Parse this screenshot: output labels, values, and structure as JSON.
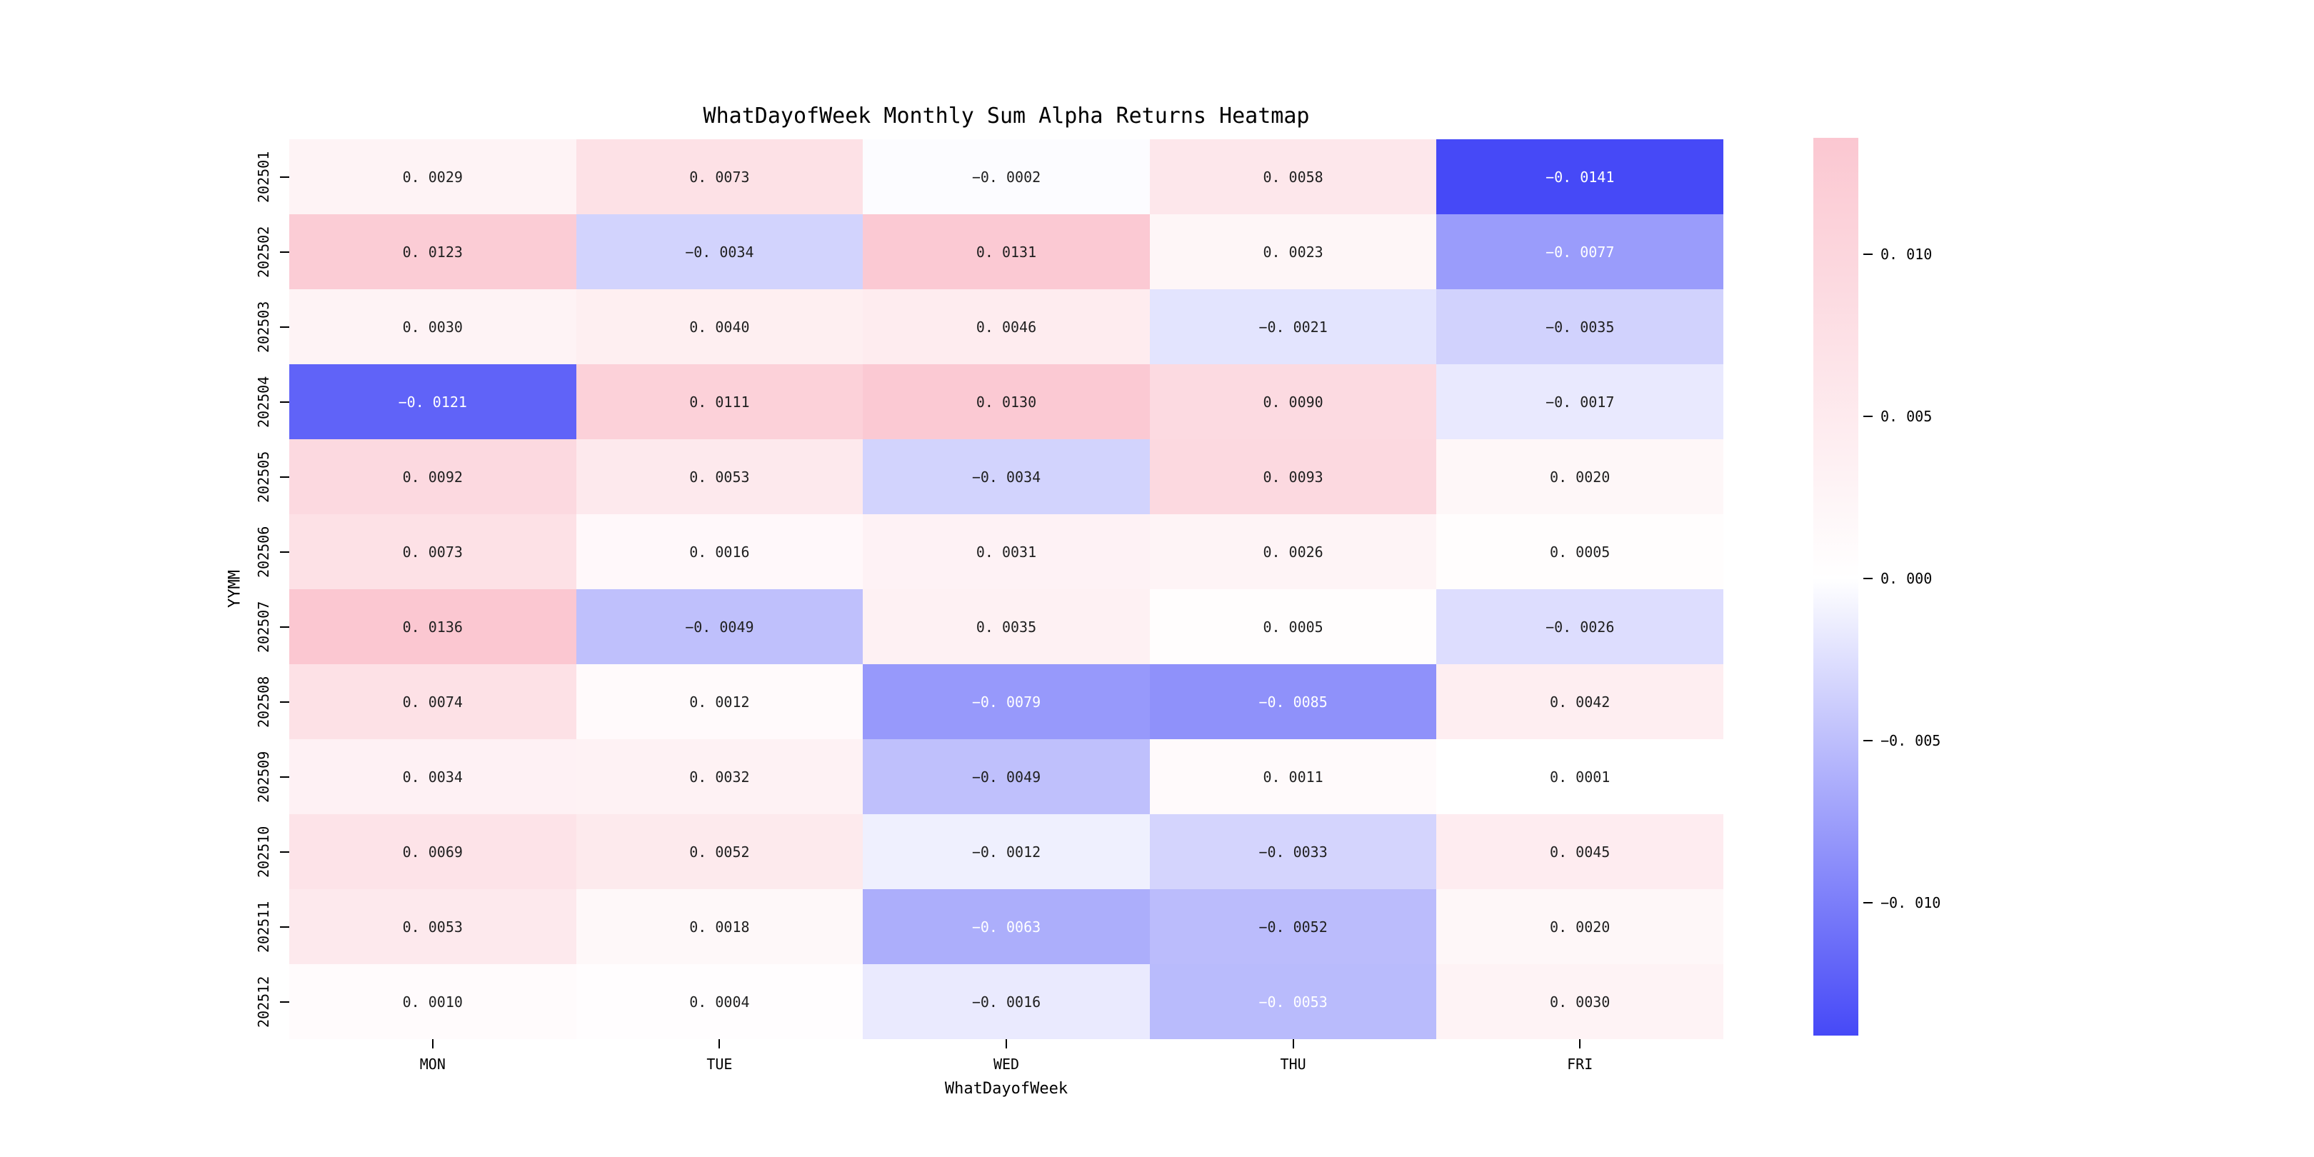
{
  "figure": {
    "background": "#ffffff"
  },
  "chart_data": {
    "type": "heatmap",
    "title": "WhatDayofWeek Monthly Sum Alpha Returns Heatmap",
    "xlabel": "WhatDayofWeek",
    "ylabel": "YYMM",
    "x_categories": [
      "MON",
      "TUE",
      "WED",
      "THU",
      "FRI"
    ],
    "y_categories": [
      "202501",
      "202502",
      "202503",
      "202504",
      "202505",
      "202506",
      "202507",
      "202508",
      "202509",
      "202510",
      "202511",
      "202512"
    ],
    "values": [
      [
        0.0029,
        0.0073,
        -0.0002,
        0.0058,
        -0.0141
      ],
      [
        0.0123,
        -0.0034,
        0.0131,
        0.0023,
        -0.0077
      ],
      [
        0.003,
        0.004,
        0.0046,
        -0.0021,
        -0.0035
      ],
      [
        -0.0121,
        0.0111,
        0.013,
        0.009,
        -0.0017
      ],
      [
        0.0092,
        0.0053,
        -0.0034,
        0.0093,
        0.002
      ],
      [
        0.0073,
        0.0016,
        0.0031,
        0.0026,
        0.0005
      ],
      [
        0.0136,
        -0.0049,
        0.0035,
        0.0005,
        -0.0026
      ],
      [
        0.0074,
        0.0012,
        -0.0079,
        -0.0085,
        0.0042
      ],
      [
        0.0034,
        0.0032,
        -0.0049,
        0.0011,
        0.0001
      ],
      [
        0.0069,
        0.0052,
        -0.0012,
        -0.0033,
        0.0045
      ],
      [
        0.0053,
        0.0018,
        -0.0063,
        -0.0052,
        0.002
      ],
      [
        0.001,
        0.0004,
        -0.0016,
        -0.0053,
        0.003
      ]
    ],
    "vmin": -0.0141,
    "vmax": 0.0136,
    "value_decimals": 4,
    "grid": false,
    "colorbar": {
      "position": "right",
      "ticks": [
        0.01,
        0.005,
        0.0,
        -0.005,
        -0.01
      ],
      "tick_decimals": 3
    },
    "colors": {
      "positive_max": "#fbc7d1",
      "center": "#ffffff",
      "negative_min": "#4649f7",
      "annot_dark": "#202020",
      "annot_light": "#ffffff"
    },
    "annot_white_when_value_below": -0.00525
  }
}
